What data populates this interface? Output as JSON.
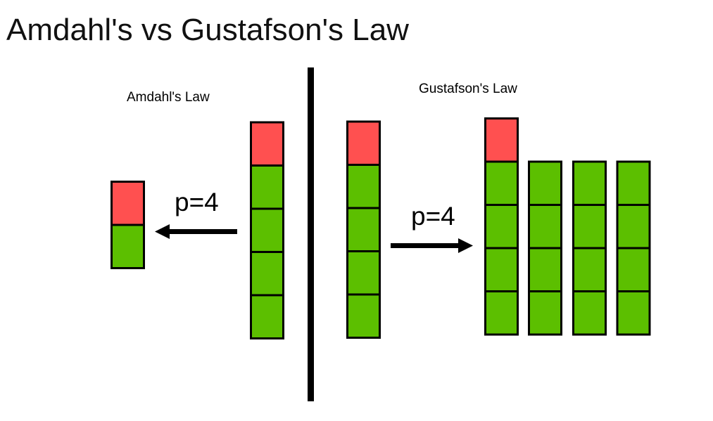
{
  "title": "Amdahl's vs Gustafson's Law",
  "amdahl": {
    "label": "Amdahl's Law",
    "arrow_label": "p=4",
    "arrow_direction": "left",
    "before": [
      [
        "serial",
        "parallel",
        "parallel",
        "parallel",
        "parallel"
      ]
    ],
    "after": [
      [
        "serial",
        "parallel"
      ]
    ]
  },
  "gustafson": {
    "label": "Gustafson's Law",
    "arrow_label": "p=4",
    "arrow_direction": "right",
    "before": [
      [
        "serial",
        "parallel",
        "parallel",
        "parallel",
        "parallel"
      ]
    ],
    "after": [
      [
        "serial",
        "parallel",
        "parallel",
        "parallel",
        "parallel"
      ],
      [
        "parallel",
        "parallel",
        "parallel",
        "parallel"
      ],
      [
        "parallel",
        "parallel",
        "parallel",
        "parallel"
      ],
      [
        "parallel",
        "parallel",
        "parallel",
        "parallel"
      ]
    ]
  },
  "colors": {
    "serial": "#FF5050",
    "parallel": "#5CBF00",
    "stroke": "#000000"
  }
}
